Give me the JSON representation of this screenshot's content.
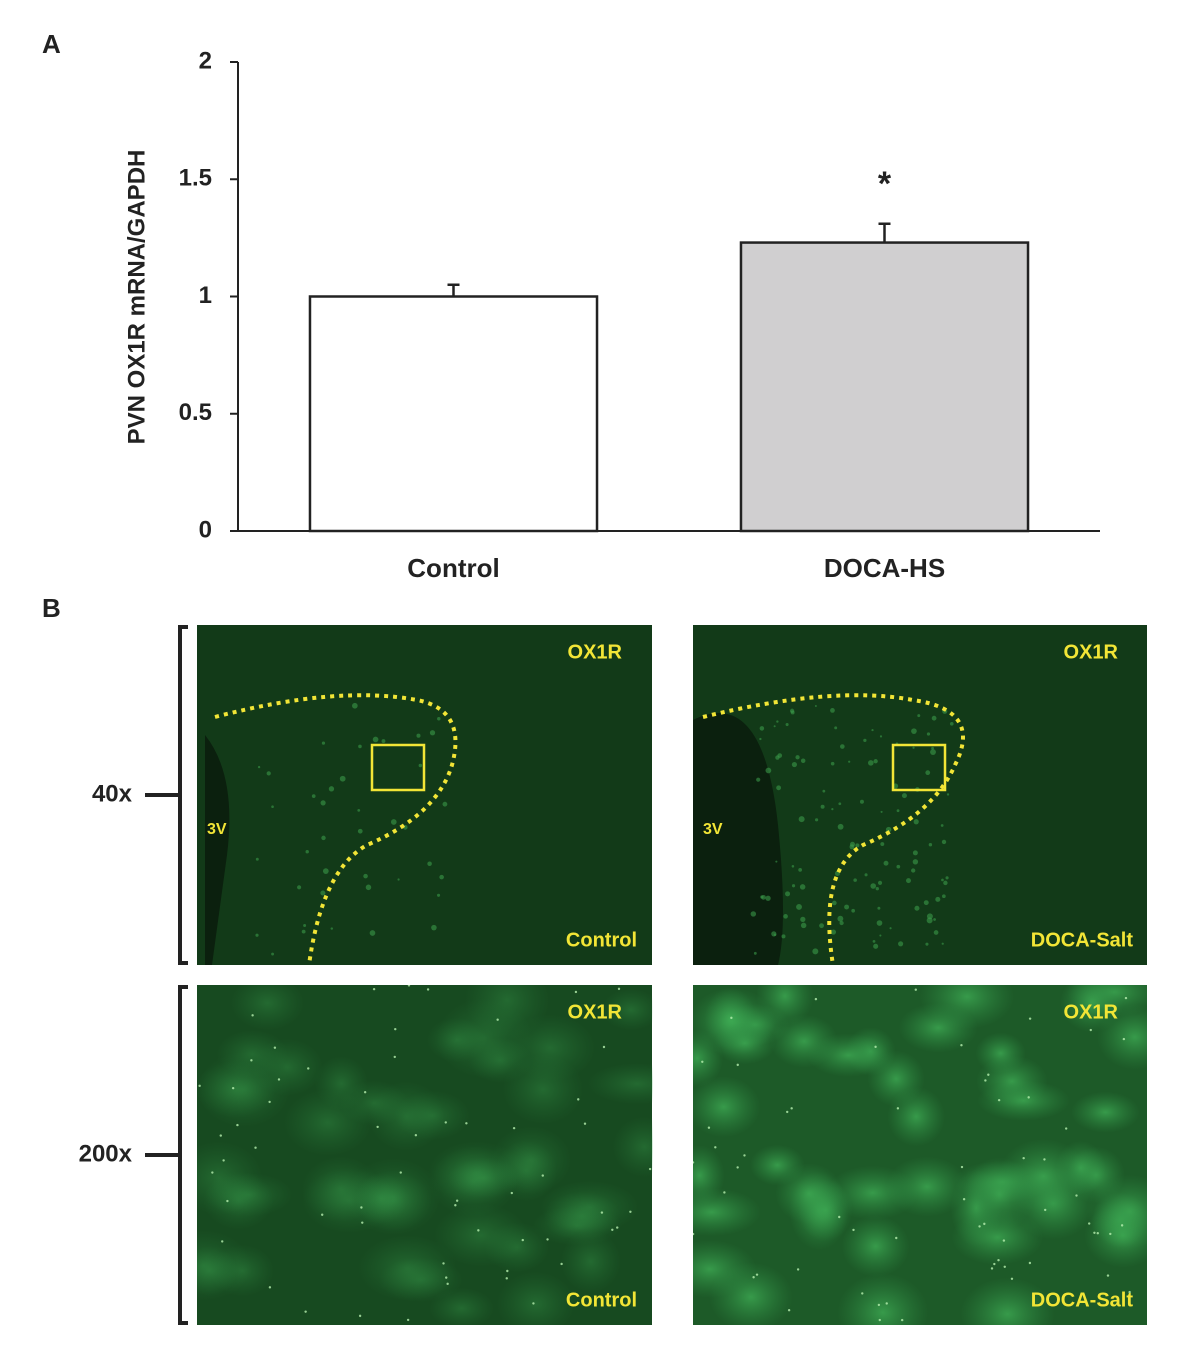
{
  "chart_data": {
    "type": "bar",
    "panel_label": "A",
    "ylabel": "PVN OX1R mRNA/GAPDH",
    "categories": [
      "Control",
      "DOCA-HS"
    ],
    "values": [
      1.0,
      1.23
    ],
    "errors": [
      0.05,
      0.08
    ],
    "colors": [
      "#ffffff",
      "#d0cfd0"
    ],
    "annotations": [
      null,
      "*"
    ],
    "ylim": [
      0,
      2
    ],
    "yticks": [
      0,
      0.5,
      1,
      1.5,
      2
    ],
    "grid": false
  },
  "panel_b": {
    "label": "B",
    "rows": [
      {
        "magnification": "40x",
        "images": [
          {
            "stain": "OX1R",
            "region": "3V",
            "group": "Control"
          },
          {
            "stain": "OX1R",
            "region": "3V",
            "group": "DOCA-Salt"
          }
        ]
      },
      {
        "magnification": "200x",
        "images": [
          {
            "stain": "OX1R",
            "group": "Control"
          },
          {
            "stain": "OX1R",
            "group": "DOCA-Salt"
          }
        ]
      }
    ]
  }
}
